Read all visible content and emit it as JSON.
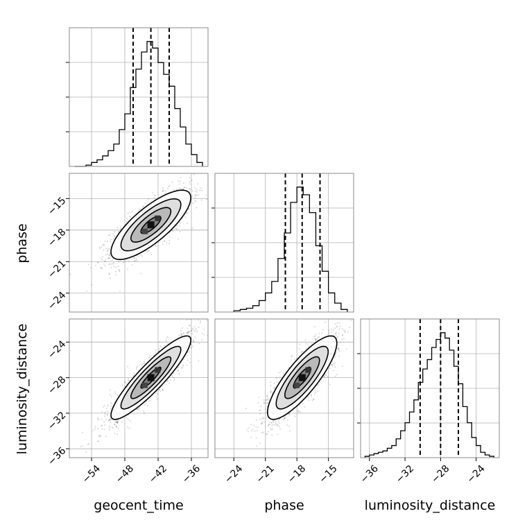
{
  "chart_data": {
    "type": "corner",
    "parameters": [
      "geocent_time",
      "phase",
      "luminosity_distance"
    ],
    "axis_labels": {
      "x": [
        "geocent_time",
        "phase",
        "luminosity_distance"
      ],
      "y": [
        "",
        "phase",
        "luminosity_distance"
      ]
    },
    "ranges": {
      "geocent_time": [
        -58,
        -33
      ],
      "phase": [
        -25.8,
        -12.6
      ],
      "luminosity_distance": [
        -37,
        -21.4
      ]
    },
    "ticks": {
      "geocent_time": {
        "values": [
          -54,
          -48,
          -42,
          -36
        ],
        "labels": [
          "−54",
          "−48",
          "−42",
          "−36"
        ]
      },
      "phase": {
        "values": [
          -24,
          -21,
          -18,
          -15
        ],
        "labels": [
          "−24",
          "−21",
          "−18",
          "−15"
        ]
      },
      "luminosity_distance": {
        "values": [
          -36,
          -32,
          -28,
          -24
        ],
        "labels": [
          "−36",
          "−32",
          "−28",
          "−24"
        ]
      }
    },
    "quantiles": {
      "geocent_time": [
        -46.5,
        -43.3,
        -40.0
      ],
      "phase": [
        -19.1,
        -17.5,
        -15.8
      ],
      "luminosity_distance": [
        -30.3,
        -28.0,
        -26.0
      ]
    },
    "histograms": {
      "geocent_time": {
        "edges": [
          -57,
          -56,
          -55,
          -54,
          -53,
          -52,
          -51,
          -50,
          -49,
          -48,
          -47,
          -46,
          -45,
          -44,
          -43,
          -42,
          -41,
          -40,
          -39,
          -38,
          -37,
          -36,
          -35,
          -34
        ],
        "counts": [
          0,
          0,
          1,
          3,
          5,
          8,
          12,
          17,
          28,
          40,
          60,
          74,
          87,
          95,
          90,
          79,
          70,
          61,
          44,
          30,
          17,
          9,
          3
        ]
      },
      "phase": {
        "edges": [
          -24,
          -23.4,
          -22.8,
          -22.2,
          -21.6,
          -21,
          -20.4,
          -19.8,
          -19.2,
          -18.6,
          -18,
          -17.4,
          -16.8,
          -16.2,
          -15.6,
          -15,
          -14.4,
          -13.8,
          -13.2
        ],
        "counts": [
          1,
          2,
          3,
          5,
          9,
          15,
          24,
          42,
          62,
          86,
          98,
          92,
          78,
          52,
          32,
          15,
          7,
          2
        ]
      },
      "luminosity_distance": {
        "edges": [
          -36.5,
          -36,
          -35.5,
          -35,
          -34.5,
          -34,
          -33.5,
          -33,
          -32.5,
          -32,
          -31.5,
          -31,
          -30.5,
          -30,
          -29.5,
          -29,
          -28.5,
          -28,
          -27.5,
          -27,
          -26.5,
          -26,
          -25.5,
          -25,
          -24.5,
          -24,
          -23.5,
          -23,
          -22.5,
          -22
        ],
        "counts": [
          1,
          2,
          3,
          4,
          5,
          7,
          9,
          14,
          20,
          26,
          34,
          43,
          56,
          66,
          73,
          82,
          88,
          93,
          89,
          80,
          68,
          55,
          38,
          26,
          15,
          9,
          4,
          2,
          1
        ]
      }
    },
    "panels_2d": [
      {
        "x": "geocent_time",
        "y": "phase",
        "mean": [
          -43.3,
          -17.5
        ],
        "std": [
          3.6,
          1.65
        ],
        "correlation": 0.78
      },
      {
        "x": "geocent_time",
        "y": "luminosity_distance",
        "mean": [
          -43.3,
          -28.0
        ],
        "std": [
          3.6,
          2.35
        ],
        "correlation": 0.9
      },
      {
        "x": "phase",
        "y": "luminosity_distance",
        "mean": [
          -17.5,
          -28.0
        ],
        "std": [
          1.65,
          2.35
        ],
        "correlation": 0.83
      }
    ],
    "grid": true,
    "legend": "none"
  }
}
